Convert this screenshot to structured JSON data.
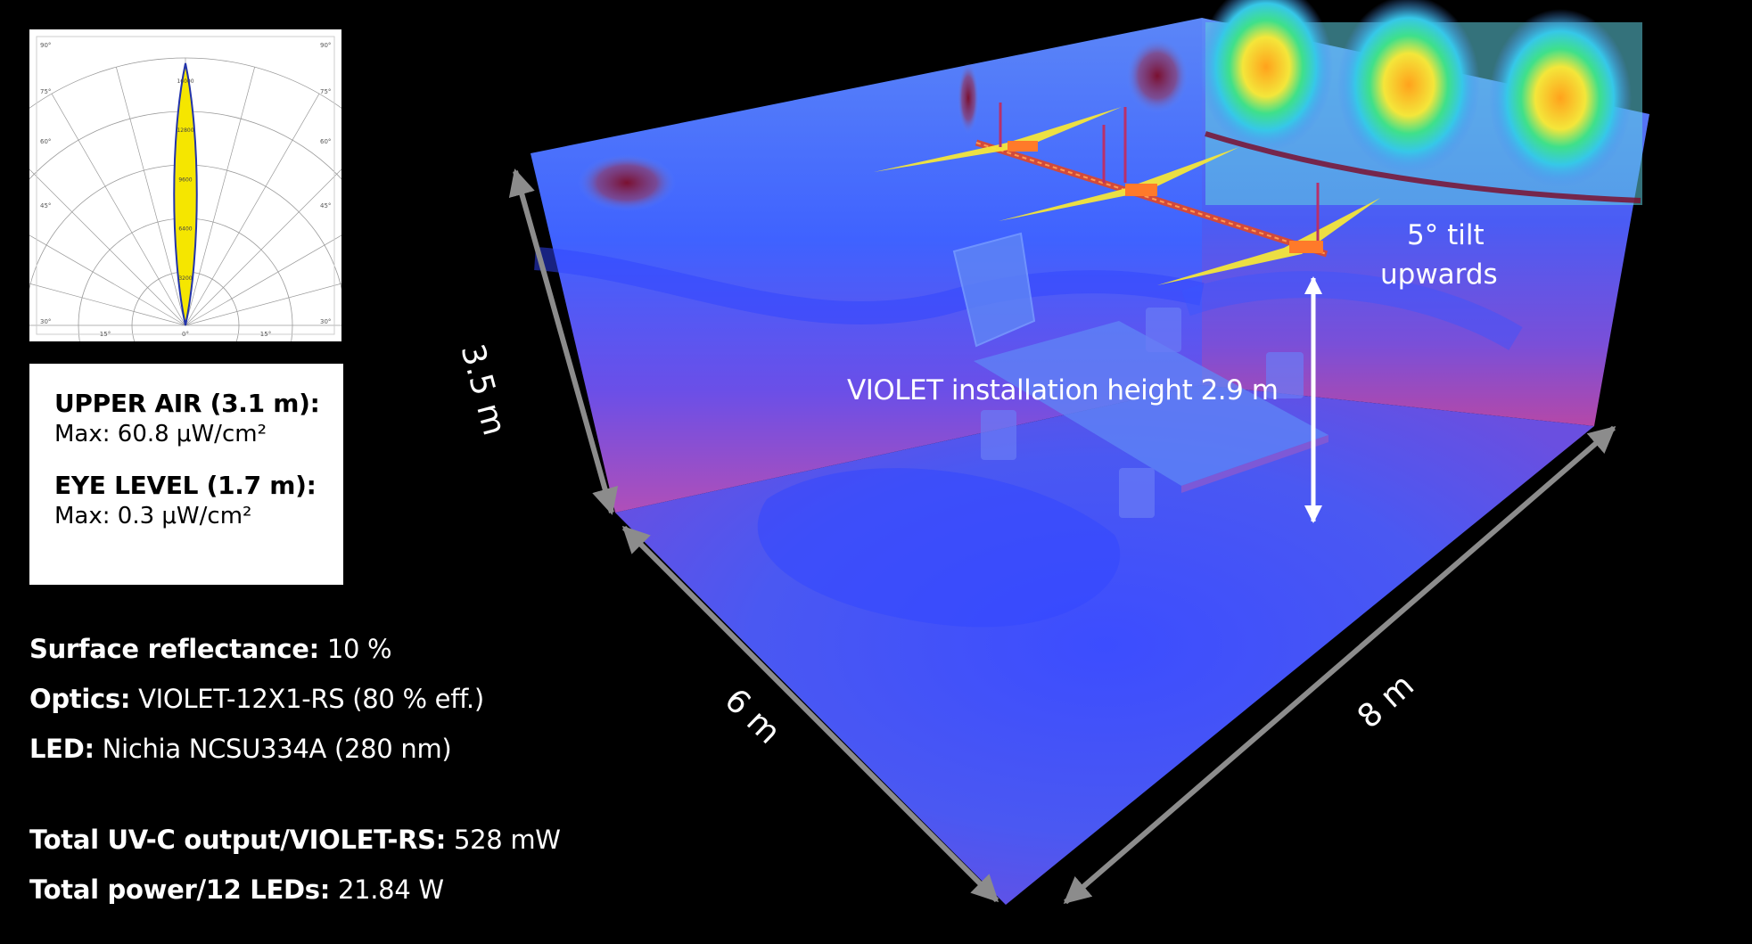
{
  "polar_chart": {
    "angle_labels": [
      "90°",
      "75°",
      "60°",
      "45°",
      "30°",
      "15°",
      "0°",
      "15°",
      "30°",
      "45°",
      "60°",
      "75°",
      "90°"
    ],
    "radial_labels": [
      "3200",
      "6400",
      "9600",
      "12800",
      "16000"
    ],
    "colors": {
      "lobe": "#f5e600",
      "lobe_edge": "#2233aa",
      "grid": "#9a9a9a"
    }
  },
  "stats": {
    "upper_air": {
      "label": "UPPER AIR (3.1 m):",
      "value": "Max: 60.8 μW/cm²"
    },
    "eye_level": {
      "label": "EYE LEVEL (1.7 m):",
      "value": "Max: 0.3 μW/cm²"
    }
  },
  "specs": {
    "reflectance": {
      "label": "Surface reflectance:",
      "value": " 10 %"
    },
    "optics": {
      "label": "Optics:",
      "value": " VIOLET-12X1-RS (80 % eff.)"
    },
    "led": {
      "label": "LED:",
      "value": " Nichia NCSU334A (280 nm)"
    },
    "uv_output": {
      "label": "Total UV-C output/VIOLET-RS:",
      "value": " 528 mW"
    },
    "power": {
      "label": "Total power/12 LEDs:",
      "value": " 21.84 W"
    }
  },
  "scene": {
    "dim_height": "3.5 m",
    "dim_depth": "6 m",
    "dim_width": "8 m",
    "install_height": "VIOLET installation height 2.9 m",
    "tilt_line1": "5° tilt",
    "tilt_line2": "upwards",
    "colors": {
      "floor": "#4a55f0",
      "wall_low": "#8a3fc8",
      "wall_high": "#5a7af5",
      "arrow": "#8c8c8c",
      "hot": "#ff9a20"
    }
  }
}
